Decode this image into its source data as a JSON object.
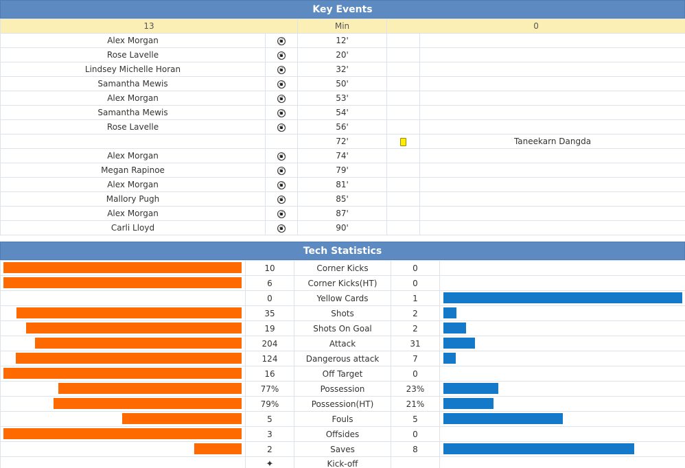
{
  "key_events": {
    "title": "Key Events",
    "home_score": "13",
    "min_label": "Min",
    "away_score": "0",
    "events": [
      {
        "home": "Alex Morgan",
        "home_icon": "goal",
        "min": "12'",
        "away_icon": "",
        "away": ""
      },
      {
        "home": "Rose Lavelle",
        "home_icon": "goal",
        "min": "20'",
        "away_icon": "",
        "away": ""
      },
      {
        "home": "Lindsey Michelle Horan",
        "home_icon": "goal",
        "min": "32'",
        "away_icon": "",
        "away": ""
      },
      {
        "home": "Samantha Mewis",
        "home_icon": "goal",
        "min": "50'",
        "away_icon": "",
        "away": ""
      },
      {
        "home": "Alex Morgan",
        "home_icon": "goal",
        "min": "53'",
        "away_icon": "",
        "away": ""
      },
      {
        "home": "Samantha Mewis",
        "home_icon": "goal",
        "min": "54'",
        "away_icon": "",
        "away": ""
      },
      {
        "home": "Rose Lavelle",
        "home_icon": "goal",
        "min": "56'",
        "away_icon": "",
        "away": ""
      },
      {
        "home": "",
        "home_icon": "",
        "min": "72'",
        "away_icon": "yellow-card",
        "away": "Taneekarn Dangda"
      },
      {
        "home": "Alex Morgan",
        "home_icon": "goal",
        "min": "74'",
        "away_icon": "",
        "away": ""
      },
      {
        "home": "Megan Rapinoe",
        "home_icon": "goal",
        "min": "79'",
        "away_icon": "",
        "away": ""
      },
      {
        "home": "Alex Morgan",
        "home_icon": "goal",
        "min": "81'",
        "away_icon": "",
        "away": ""
      },
      {
        "home": "Mallory Pugh",
        "home_icon": "goal",
        "min": "85'",
        "away_icon": "",
        "away": ""
      },
      {
        "home": "Alex Morgan",
        "home_icon": "goal",
        "min": "87'",
        "away_icon": "",
        "away": ""
      },
      {
        "home": "Carli Lloyd",
        "home_icon": "goal",
        "min": "90'",
        "away_icon": "",
        "away": ""
      }
    ]
  },
  "tech_stats": {
    "title": "Tech Statistics",
    "colors": {
      "home_bar": "#ff6a00",
      "away_bar": "#1479c9"
    },
    "rows": [
      {
        "label": "Corner Kicks",
        "home": "10",
        "away": "0",
        "home_share": 1.0,
        "away_share": 0.0
      },
      {
        "label": "Corner Kicks(HT)",
        "home": "6",
        "away": "0",
        "home_share": 1.0,
        "away_share": 0.0
      },
      {
        "label": "Yellow Cards",
        "home": "0",
        "away": "1",
        "home_share": 0.0,
        "away_share": 1.0
      },
      {
        "label": "Shots",
        "home": "35",
        "away": "2",
        "home_share": 0.946,
        "away_share": 0.054
      },
      {
        "label": "Shots On Goal",
        "home": "19",
        "away": "2",
        "home_share": 0.905,
        "away_share": 0.095
      },
      {
        "label": "Attack",
        "home": "204",
        "away": "31",
        "home_share": 0.868,
        "away_share": 0.132
      },
      {
        "label": "Dangerous attack",
        "home": "124",
        "away": "7",
        "home_share": 0.947,
        "away_share": 0.053
      },
      {
        "label": "Off Target",
        "home": "16",
        "away": "0",
        "home_share": 1.0,
        "away_share": 0.0
      },
      {
        "label": "Possession",
        "home": "77%",
        "away": "23%",
        "home_share": 0.77,
        "away_share": 0.23
      },
      {
        "label": "Possession(HT)",
        "home": "79%",
        "away": "21%",
        "home_share": 0.79,
        "away_share": 0.21
      },
      {
        "label": "Fouls",
        "home": "5",
        "away": "5",
        "home_share": 0.5,
        "away_share": 0.5
      },
      {
        "label": "Offsides",
        "home": "3",
        "away": "0",
        "home_share": 1.0,
        "away_share": 0.0
      },
      {
        "label": "Saves",
        "home": "2",
        "away": "8",
        "home_share": 0.2,
        "away_share": 0.8
      }
    ],
    "kickoff": {
      "label": "Kick-off",
      "home_icon": "kickoff-star"
    }
  }
}
